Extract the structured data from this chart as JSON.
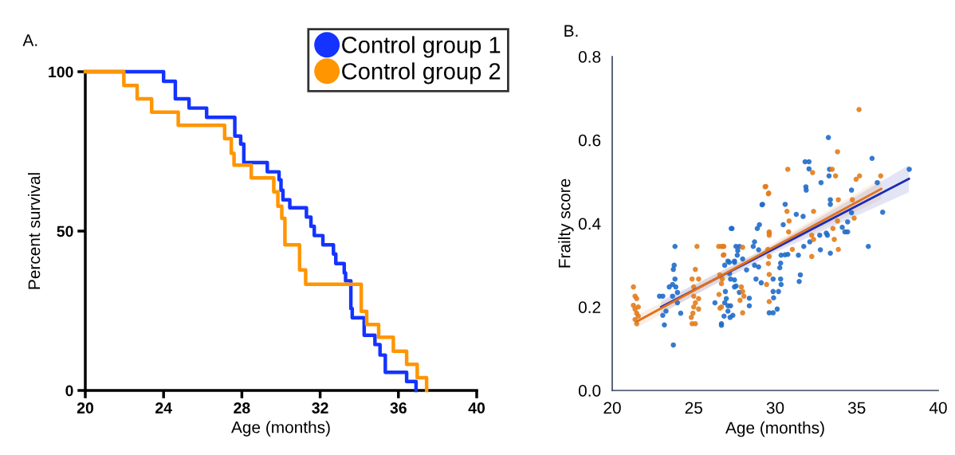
{
  "chart_data": [
    {
      "type": "step",
      "title": "A.",
      "xlabel": "Age (months)",
      "ylabel": "Percent survival",
      "xlim": [
        20,
        40
      ],
      "ylim": [
        0,
        100
      ],
      "xticks": [
        20,
        24,
        28,
        32,
        36,
        40
      ],
      "yticks": [
        0,
        50,
        100
      ],
      "grid": false,
      "legend": "top right",
      "marker": "none",
      "line_style": "solid",
      "series": [
        {
          "name": "Control group 1",
          "color": "#1433ff",
          "x": [
            20,
            24.0,
            24.6,
            25.3,
            26.2,
            27.64,
            27.94,
            28.1,
            29.3,
            29.9,
            30.0,
            30.1,
            30.45,
            31.3,
            31.53,
            31.7,
            32.14,
            32.68,
            32.8,
            33.23,
            33.3,
            33.57,
            33.64,
            34.25,
            34.8,
            35.06,
            35.33,
            36.42,
            36.9
          ],
          "values": [
            100,
            97,
            91.5,
            88.6,
            85.7,
            79.8,
            77.3,
            71.5,
            68.6,
            66.1,
            62.8,
            59.8,
            57.3,
            54.4,
            51.5,
            48.6,
            45.7,
            42.8,
            39.8,
            36.9,
            34.4,
            25.7,
            22.8,
            17.3,
            14.4,
            11.1,
            5.7,
            2.8,
            0
          ]
        },
        {
          "name": "Control group 2",
          "color": "#ff9500",
          "x": [
            20,
            21.97,
            22.65,
            23.39,
            24.75,
            27.12,
            27.46,
            27.6,
            28.48,
            29.63,
            29.84,
            30.04,
            30.2,
            30.95,
            31.26,
            34.1,
            34.38,
            34.99,
            35.74,
            36.42,
            36.96,
            37.44
          ],
          "values": [
            100,
            95.7,
            91.5,
            87.3,
            83.2,
            79,
            74.4,
            70.7,
            66.7,
            62.3,
            57.8,
            54,
            45.7,
            37.8,
            33.3,
            24.8,
            20.7,
            16.7,
            12.3,
            8.2,
            4,
            0
          ]
        }
      ]
    },
    {
      "type": "scatter",
      "title": "B.",
      "xlabel": "Age (months)",
      "ylabel": "Frailty score",
      "xlim": [
        20,
        40
      ],
      "ylim": [
        0,
        0.8
      ],
      "xticks": [
        20,
        25,
        30,
        35,
        40
      ],
      "yticks": [
        {
          "value": 0,
          "label": "0.0"
        },
        {
          "value": 0.2,
          "label": "0.2"
        },
        {
          "value": 0.4,
          "label": "0.4"
        },
        {
          "value": 0.6,
          "label": "0.6"
        },
        {
          "value": 0.8,
          "label": "0.8"
        }
      ],
      "grid": false,
      "series": [
        {
          "type": "scatter",
          "marker": "circle",
          "color": "#1f6cc9",
          "x": [
            23.85,
            23.8,
            23.75,
            23.7,
            23.5,
            23.85,
            24.0,
            22.9,
            23.1,
            23.7,
            24.0,
            24.2,
            23.1,
            23.2,
            23.75,
            23.3,
            23.9,
            27.3,
            27.8,
            27.7,
            27.1,
            27.5,
            28.0,
            26.9,
            27.2,
            27.5,
            27.6,
            27.8,
            26.3,
            26.9,
            27.0,
            27.1,
            27.4,
            26.7,
            33.26,
            35.94,
            31.83,
            32.07,
            32.07,
            33.33,
            33.3,
            32.81,
            38.22,
            36.26,
            31.88,
            31.9,
            34.68,
            29.22,
            30.61,
            33.38,
            33.38,
            31.29,
            31.71,
            36.59,
            30.49,
            29.03,
            28.9,
            27.35,
            28.73,
            28.65,
            28.98,
            27.59,
            27.67,
            27.18,
            27.5,
            28.73,
            28.98,
            30.36,
            30.6,
            30.77,
            31.42,
            31.75,
            32.12,
            32.77,
            32.73,
            33.13,
            33.2,
            34.11,
            34.27,
            34.44,
            34.44,
            34.68,
            33.38,
            35.71,
            30.33,
            30.28,
            29.87,
            30.33,
            30.36,
            30.2,
            29.87,
            29.9,
            30.12,
            29.87,
            29.63,
            31.54,
            31.47,
            27.26,
            27.5,
            26.94,
            27.1,
            27.26,
            26.86,
            27.23,
            26.7,
            28.41,
            28.41,
            29.14,
            28.82,
            28.24,
            29.19
          ],
          "values": [
            0.345,
            0.3,
            0.29,
            0.254,
            0.248,
            0.267,
            0.235,
            0.226,
            0.226,
            0.226,
            0.21,
            0.185,
            0.18,
            0.157,
            0.109,
            0.19,
            0.248,
            0.388,
            0.345,
            0.335,
            0.31,
            0.31,
            0.315,
            0.3,
            0.28,
            0.265,
            0.25,
            0.235,
            0.21,
            0.21,
            0.22,
            0.19,
            0.18,
            0.16,
            0.606,
            0.556,
            0.548,
            0.548,
            0.531,
            0.53,
            0.514,
            0.498,
            0.53,
            0.498,
            0.488,
            0.48,
            0.48,
            0.446,
            0.446,
            0.457,
            0.446,
            0.422,
            0.417,
            0.427,
            0.397,
            0.397,
            0.388,
            0.388,
            0.356,
            0.345,
            0.337,
            0.345,
            0.324,
            0.307,
            0.307,
            0.3,
            0.296,
            0.324,
            0.325,
            0.326,
            0.324,
            0.345,
            0.356,
            0.337,
            0.372,
            0.377,
            0.372,
            0.391,
            0.38,
            0.38,
            0.404,
            0.426,
            0.329,
            0.345,
            0.305,
            0.294,
            0.267,
            0.267,
            0.254,
            0.237,
            0.237,
            0.222,
            0.195,
            0.186,
            0.186,
            0.277,
            0.261,
            0.267,
            0.248,
            0.237,
            0.203,
            0.203,
            0.178,
            0.175,
            0.156,
            0.203,
            0.221,
            0.258,
            0.267,
            0.289,
            0.445
          ]
        },
        {
          "type": "scatter",
          "marker": "circle",
          "color": "#e27c1c",
          "x": [
            21.3,
            21.4,
            21.5,
            21.3,
            21.6,
            21.4,
            21.5,
            21.6,
            21.4,
            21.5,
            25.2,
            25.1,
            24.9,
            25.3,
            25.0,
            25.0,
            25.3,
            25.1,
            25.0,
            25.3,
            24.95,
            25.1,
            24.9,
            24.85,
            26.7,
            26.85,
            26.85,
            26.6,
            26.75,
            26.7,
            26.55,
            26.7,
            35.14,
            33.82,
            30.77,
            32.29,
            33.49,
            33.7,
            34.96,
            35.17,
            36.47,
            29.38,
            29.58,
            30.72,
            32.35,
            33.87,
            34.73,
            30.85,
            29.63,
            29.63,
            30.82,
            32.24,
            32.35,
            33.54,
            33.62,
            33.82,
            34.84,
            31.05,
            32.24,
            33.87,
            29.55,
            29.63,
            29.58,
            29.63,
            29.47,
            29.63,
            28.0,
            26.78,
            26.53,
            26.81,
            27.92,
            28.0,
            28.08,
            27.84,
            28.0,
            26.61,
            29.42,
            29.6,
            29.63
          ],
          "values": [
            0.248,
            0.226,
            0.22,
            0.204,
            0.2,
            0.195,
            0.185,
            0.178,
            0.17,
            0.16,
            0.345,
            0.29,
            0.267,
            0.267,
            0.248,
            0.226,
            0.22,
            0.21,
            0.2,
            0.195,
            0.185,
            0.16,
            0.16,
            0.175,
            0.345,
            0.345,
            0.325,
            0.277,
            0.267,
            0.256,
            0.23,
            0.2,
            0.673,
            0.572,
            0.53,
            0.522,
            0.53,
            0.514,
            0.506,
            0.514,
            0.514,
            0.488,
            0.471,
            0.429,
            0.429,
            0.457,
            0.457,
            0.406,
            0.38,
            0.372,
            0.38,
            0.372,
            0.362,
            0.388,
            0.362,
            0.406,
            0.413,
            0.338,
            0.321,
            0.338,
            0.338,
            0.321,
            0.304,
            0.278,
            0.254,
            0.213,
            0.343,
            0.345,
            0.345,
            0.324,
            0.248,
            0.237,
            0.226,
            0.216,
            0.186,
            0.197,
            0.489,
            0.473,
            0.377
          ]
        },
        {
          "type": "line",
          "color": "#1a2db5",
          "x": [
            23,
            30,
            38.2
          ],
          "values": [
            0.2,
            0.341,
            0.507
          ],
          "lower": [
            0.185,
            0.331,
            0.475
          ],
          "upper": [
            0.215,
            0.351,
            0.54
          ]
        },
        {
          "type": "line",
          "color": "#e0701a",
          "x": [
            21.5,
            29,
            36.5
          ],
          "values": [
            0.165,
            0.324,
            0.483
          ],
          "lower": [
            0.15,
            0.316,
            0.458
          ],
          "upper": [
            0.18,
            0.332,
            0.508
          ]
        }
      ]
    }
  ]
}
